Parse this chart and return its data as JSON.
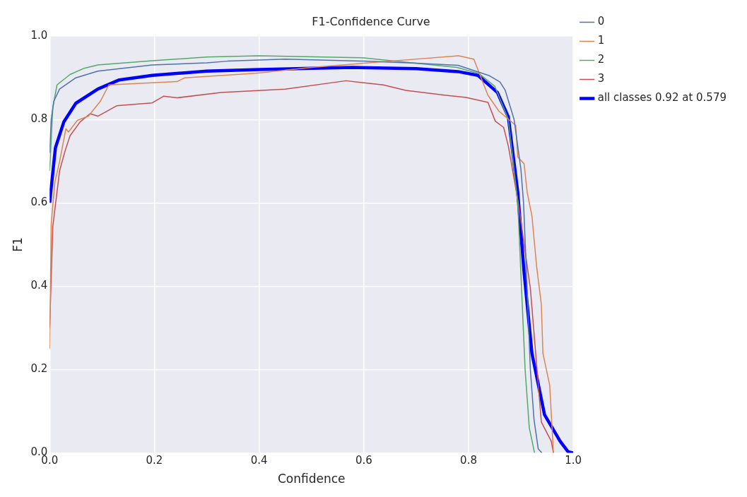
{
  "chart_data": {
    "type": "line",
    "title": "F1-Confidence Curve",
    "xlabel": "Confidence",
    "ylabel": "F1",
    "xlim": [
      0,
      1
    ],
    "ylim": [
      0,
      1
    ],
    "xticks": [
      {
        "value": 0,
        "label": "0.0"
      },
      0.2,
      0.4,
      0.6,
      0.8,
      {
        "value": 1,
        "label": "1.0"
      }
    ],
    "yticks": [
      {
        "value": 0,
        "label": "0.0"
      },
      0.2,
      0.4,
      0.6,
      0.8,
      {
        "value": 1,
        "label": "1.0"
      }
    ],
    "grid": true,
    "legend": "top right",
    "marker": "none",
    "line_style": "solid",
    "series": [
      {
        "name": "0",
        "color": "#4c72b0",
        "x": [
          0,
          0.003,
          0.008,
          0.019,
          0.05,
          0.092,
          0.196,
          0.3,
          0.34,
          0.45,
          0.6,
          0.7,
          0.78,
          0.84,
          0.86,
          0.87,
          0.887,
          0.9,
          0.905,
          0.91,
          0.918,
          0.925,
          0.933,
          0.94
        ],
        "values": [
          0.72,
          0.8,
          0.844,
          0.873,
          0.9,
          0.916,
          0.931,
          0.936,
          0.94,
          0.945,
          0.94,
          0.935,
          0.93,
          0.905,
          0.89,
          0.87,
          0.8,
          0.68,
          0.6,
          0.45,
          0.2,
          0.08,
          0.01,
          0
        ]
      },
      {
        "name": "1",
        "color": "#dd8452",
        "x": [
          0,
          0.003,
          0.01,
          0.019,
          0.031,
          0.036,
          0.053,
          0.074,
          0.097,
          0.113,
          0.243,
          0.258,
          0.394,
          0.5,
          0.65,
          0.781,
          0.81,
          0.837,
          0.858,
          0.89,
          0.894,
          0.906,
          0.912,
          0.921,
          0.93,
          0.939,
          0.942,
          0.955,
          0.96,
          0.962
        ],
        "values": [
          0.25,
          0.55,
          0.65,
          0.699,
          0.778,
          0.77,
          0.798,
          0.808,
          0.844,
          0.883,
          0.891,
          0.9,
          0.911,
          0.925,
          0.94,
          0.953,
          0.945,
          0.858,
          0.82,
          0.786,
          0.71,
          0.694,
          0.625,
          0.569,
          0.447,
          0.356,
          0.239,
          0.162,
          0.047,
          0
        ]
      },
      {
        "name": "2",
        "color": "#55a868",
        "x": [
          0,
          0.006,
          0.014,
          0.039,
          0.066,
          0.092,
          0.196,
          0.3,
          0.4,
          0.6,
          0.778,
          0.82,
          0.85,
          0.876,
          0.894,
          0.908,
          0.916,
          0.926
        ],
        "values": [
          0.677,
          0.828,
          0.883,
          0.908,
          0.923,
          0.931,
          0.941,
          0.95,
          0.953,
          0.948,
          0.925,
          0.91,
          0.88,
          0.8,
          0.6,
          0.2,
          0.06,
          0
        ]
      },
      {
        "name": "3",
        "color": "#c44e52",
        "x": [
          0,
          0.006,
          0.019,
          0.03,
          0.039,
          0.058,
          0.077,
          0.092,
          0.128,
          0.196,
          0.218,
          0.243,
          0.327,
          0.45,
          0.566,
          0.637,
          0.68,
          0.757,
          0.795,
          0.837,
          0.851,
          0.867,
          0.876,
          0.895,
          0.918,
          0.939,
          0.958,
          0.962
        ],
        "values": [
          0.3,
          0.543,
          0.677,
          0.727,
          0.761,
          0.794,
          0.814,
          0.808,
          0.833,
          0.84,
          0.856,
          0.852,
          0.865,
          0.873,
          0.893,
          0.883,
          0.87,
          0.858,
          0.853,
          0.841,
          0.796,
          0.781,
          0.736,
          0.6,
          0.395,
          0.074,
          0.028,
          0
        ]
      },
      {
        "name": "all classes 0.92 at 0.579",
        "color": "#0000ff",
        "x": [
          0,
          0.011,
          0.027,
          0.05,
          0.092,
          0.133,
          0.196,
          0.3,
          0.4,
          0.5,
          0.579,
          0.7,
          0.78,
          0.818,
          0.855,
          0.876,
          0.894,
          0.906,
          0.921,
          0.945,
          0.975,
          0.99,
          1
        ],
        "values": [
          0.6,
          0.732,
          0.794,
          0.839,
          0.873,
          0.895,
          0.906,
          0.916,
          0.92,
          0.923,
          0.925,
          0.922,
          0.915,
          0.906,
          0.865,
          0.806,
          0.625,
          0.433,
          0.239,
          0.092,
          0.028,
          0.003,
          0
        ]
      }
    ]
  }
}
